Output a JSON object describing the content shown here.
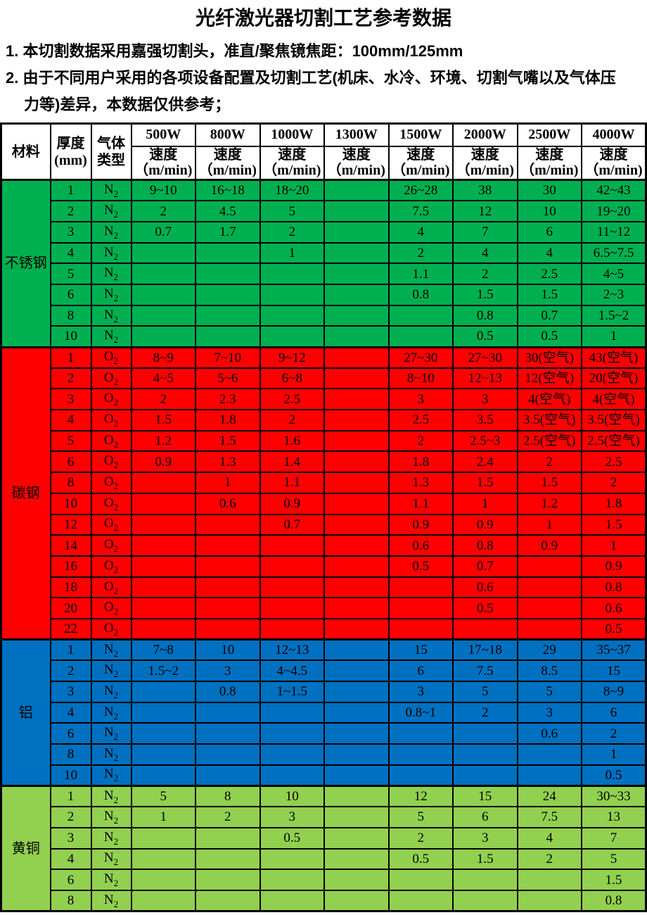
{
  "title": "光纤激光器切割工艺参考数据",
  "notes": [
    {
      "lines": [
        "1. 本切割数据采用嘉强切割头，准直/聚焦镜焦距：100mm/125mm"
      ]
    },
    {
      "lines": [
        "2. 由于不同用户采用的各项设备配置及切割工艺(机床、水冷、环境、切割气嘴以及气体压",
        "力等)差异，本数据仅供参考；"
      ]
    }
  ],
  "table": {
    "header": {
      "material": "材料",
      "thickness_line1": "厚度",
      "thickness_line2": "(mm)",
      "gas_line1": "气体",
      "gas_line2": "类型",
      "powers": [
        "500W",
        "800W",
        "1000W",
        "1300W",
        "1500W",
        "2000W",
        "2500W",
        "4000W"
      ],
      "speed_line1": "速度",
      "speed_line2": "（m/min)"
    },
    "sections": [
      {
        "material": "不锈钢",
        "color": "#00B050",
        "gas": {
          "base": "N",
          "sub": "2"
        },
        "rows": [
          {
            "t": "1",
            "v": [
              "9~10",
              "16~18",
              "18~20",
              "",
              "26~28",
              "38",
              "30",
              "42~43"
            ]
          },
          {
            "t": "2",
            "v": [
              "2",
              "4.5",
              "5",
              "",
              "7.5",
              "12",
              "10",
              "19~20"
            ]
          },
          {
            "t": "3",
            "v": [
              "0.7",
              "1.7",
              "2",
              "",
              "4",
              "7",
              "6",
              "11~12"
            ]
          },
          {
            "t": "4",
            "v": [
              "",
              "",
              "1",
              "",
              "2",
              "4",
              "4",
              "6.5~7.5"
            ]
          },
          {
            "t": "5",
            "v": [
              "",
              "",
              "",
              "",
              "1.1",
              "2",
              "2.5",
              "4~5"
            ]
          },
          {
            "t": "6",
            "v": [
              "",
              "",
              "",
              "",
              "0.8",
              "1.5",
              "1.5",
              "2~3"
            ]
          },
          {
            "t": "8",
            "v": [
              "",
              "",
              "",
              "",
              "",
              "0.8",
              "0.7",
              "1.5~2"
            ]
          },
          {
            "t": "10",
            "v": [
              "",
              "",
              "",
              "",
              "",
              "0.5",
              "0.5",
              "1"
            ]
          }
        ]
      },
      {
        "material": "碳钢",
        "color": "#FF0000",
        "gas": {
          "base": "O",
          "sub": "2"
        },
        "rows": [
          {
            "t": "1",
            "v": [
              "8~9",
              "7~10",
              "9~12",
              "",
              "27~30",
              "27~30",
              "30(空气)",
              "43(空气)"
            ]
          },
          {
            "t": "2",
            "v": [
              "4~5",
              "5~6",
              "6~8",
              "",
              "8~10",
              "12~13",
              "12(空气)",
              "20(空气)"
            ]
          },
          {
            "t": "3",
            "v": [
              "2",
              "2.3",
              "2.5",
              "",
              "3",
              "3",
              "4(空气)",
              "4(空气)"
            ]
          },
          {
            "t": "4",
            "v": [
              "1.5",
              "1.8",
              "2",
              "",
              "2.5",
              "3.5",
              "3.5(空气)",
              "3.5(空气)"
            ]
          },
          {
            "t": "5",
            "v": [
              "1.2",
              "1.5",
              "1.6",
              "",
              "2",
              "2.5~3",
              "2.5(空气)",
              "2.5(空气)"
            ]
          },
          {
            "t": "6",
            "v": [
              "0.9",
              "1.3",
              "1.4",
              "",
              "1.8",
              "2.4",
              "2",
              "2.5"
            ]
          },
          {
            "t": "8",
            "v": [
              "",
              "1",
              "1.1",
              "",
              "1.3",
              "1.5",
              "1.5",
              "2"
            ]
          },
          {
            "t": "10",
            "v": [
              "",
              "0.6",
              "0.9",
              "",
              "1.1",
              "1",
              "1.2",
              "1.8"
            ]
          },
          {
            "t": "12",
            "v": [
              "",
              "",
              "0.7",
              "",
              "0.9",
              "0.9",
              "1",
              "1.5"
            ]
          },
          {
            "t": "14",
            "v": [
              "",
              "",
              "",
              "",
              "0.6",
              "0.8",
              "0.9",
              "1"
            ]
          },
          {
            "t": "16",
            "v": [
              "",
              "",
              "",
              "",
              "0.5",
              "0.7",
              "",
              "0.9"
            ]
          },
          {
            "t": "18",
            "v": [
              "",
              "",
              "",
              "",
              "",
              "0.6",
              "",
              "0.8"
            ]
          },
          {
            "t": "20",
            "v": [
              "",
              "",
              "",
              "",
              "",
              "0.5",
              "",
              "0.6"
            ]
          },
          {
            "t": "22",
            "v": [
              "",
              "",
              "",
              "",
              "",
              "",
              "",
              "0.5"
            ]
          }
        ]
      },
      {
        "material": "铝",
        "color": "#0070C0",
        "gas": {
          "base": "N",
          "sub": "2"
        },
        "rows": [
          {
            "t": "1",
            "v": [
              "7~8",
              "10",
              "12~13",
              "",
              "15",
              "17~18",
              "29",
              "35~37"
            ]
          },
          {
            "t": "2",
            "v": [
              "1.5~2",
              "3",
              "4~4.5",
              "",
              "6",
              "7.5",
              "8.5",
              "15"
            ]
          },
          {
            "t": "3",
            "v": [
              "",
              "0.8",
              "1~1.5",
              "",
              "3",
              "5",
              "5",
              "8~9"
            ]
          },
          {
            "t": "4",
            "v": [
              "",
              "",
              "",
              "",
              "0.8~1",
              "2",
              "3",
              "6"
            ]
          },
          {
            "t": "6",
            "v": [
              "",
              "",
              "",
              "",
              "",
              "",
              "0.6",
              "2"
            ]
          },
          {
            "t": "8",
            "v": [
              "",
              "",
              "",
              "",
              "",
              "",
              "",
              "1"
            ]
          },
          {
            "t": "10",
            "v": [
              "",
              "",
              "",
              "",
              "",
              "",
              "",
              "0.5"
            ]
          }
        ]
      },
      {
        "material": "黄铜",
        "color": "#92D050",
        "gas": {
          "base": "N",
          "sub": "2"
        },
        "rows": [
          {
            "t": "1",
            "v": [
              "5",
              "8",
              "10",
              "",
              "12",
              "15",
              "24",
              "30~33"
            ]
          },
          {
            "t": "2",
            "v": [
              "1",
              "2",
              "3",
              "",
              "5",
              "6",
              "7.5",
              "13"
            ]
          },
          {
            "t": "3",
            "v": [
              "",
              "",
              "0.5",
              "",
              "2",
              "3",
              "4",
              "7"
            ]
          },
          {
            "t": "4",
            "v": [
              "",
              "",
              "",
              "",
              "0.5",
              "1.5",
              "2",
              "5"
            ]
          },
          {
            "t": "6",
            "v": [
              "",
              "",
              "",
              "",
              "",
              "",
              "",
              "1.5"
            ]
          },
          {
            "t": "8",
            "v": [
              "",
              "",
              "",
              "",
              "",
              "",
              "",
              "0.8"
            ]
          }
        ]
      }
    ]
  }
}
